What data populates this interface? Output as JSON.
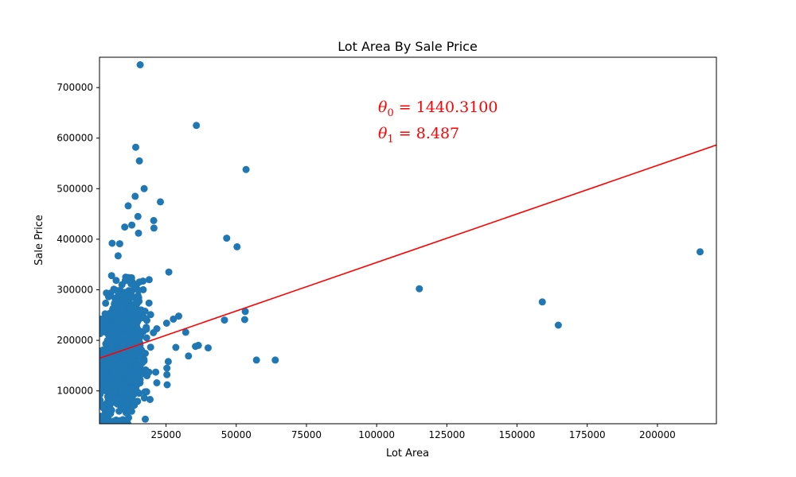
{
  "chart_data": {
    "type": "scatter",
    "title": "Lot Area By Sale Price",
    "xlabel": "Lot Area",
    "ylabel": "Sale Price",
    "xlim": [
      1300,
      221000
    ],
    "ylim": [
      35000,
      760000
    ],
    "xticks": [
      25000,
      50000,
      75000,
      100000,
      125000,
      150000,
      175000,
      200000
    ],
    "yticks": [
      100000,
      200000,
      300000,
      400000,
      500000,
      600000,
      700000
    ],
    "point_color": "#1f77b4",
    "line_color": "#ff0000",
    "regression": {
      "theta0": 1440.31,
      "theta1": 8.487,
      "slope": 1.92,
      "intercept": 162000
    },
    "annotations": [
      {
        "symbol": "θ",
        "sub": "0",
        "text": " = 1440.3100"
      },
      {
        "symbol": "θ",
        "sub": "1",
        "text": " = 8.487"
      }
    ],
    "outliers": [
      [
        15800,
        745000
      ],
      [
        35800,
        625000
      ],
      [
        14200,
        582000
      ],
      [
        15500,
        555000
      ],
      [
        53500,
        538000
      ],
      [
        17200,
        500000
      ],
      [
        14000,
        485000
      ],
      [
        23000,
        474000
      ],
      [
        11500,
        466000
      ],
      [
        15000,
        445000
      ],
      [
        20600,
        437000
      ],
      [
        12800,
        428000
      ],
      [
        10300,
        424000
      ],
      [
        20700,
        422000
      ],
      [
        15200,
        412000
      ],
      [
        46600,
        402000
      ],
      [
        50300,
        385000
      ],
      [
        215200,
        375000
      ],
      [
        5800,
        392000
      ],
      [
        8500,
        391000
      ],
      [
        26000,
        335000
      ],
      [
        5600,
        328000
      ],
      [
        19000,
        320000
      ],
      [
        115200,
        302000
      ],
      [
        159000,
        276000
      ],
      [
        164700,
        230000
      ],
      [
        53200,
        257000
      ],
      [
        53000,
        241000
      ],
      [
        45800,
        240000
      ],
      [
        29500,
        248000
      ],
      [
        27600,
        242000
      ],
      [
        25200,
        234000
      ],
      [
        32000,
        216000
      ],
      [
        21700,
        223000
      ],
      [
        20500,
        215000
      ],
      [
        40000,
        185000
      ],
      [
        36500,
        190000
      ],
      [
        35500,
        188000
      ],
      [
        28500,
        186000
      ],
      [
        33000,
        169000
      ],
      [
        57200,
        161000
      ],
      [
        63900,
        161000
      ],
      [
        25800,
        158000
      ],
      [
        25300,
        145000
      ],
      [
        25300,
        132000
      ],
      [
        21300,
        137000
      ],
      [
        21700,
        116000
      ],
      [
        25400,
        112000
      ],
      [
        18200,
        130000
      ],
      [
        17500,
        98000
      ],
      [
        17300,
        86000
      ],
      [
        4000,
        55000
      ],
      [
        5200,
        55000
      ],
      [
        6300,
        40000
      ],
      [
        8000,
        38000
      ],
      [
        4500,
        60000
      ]
    ]
  }
}
